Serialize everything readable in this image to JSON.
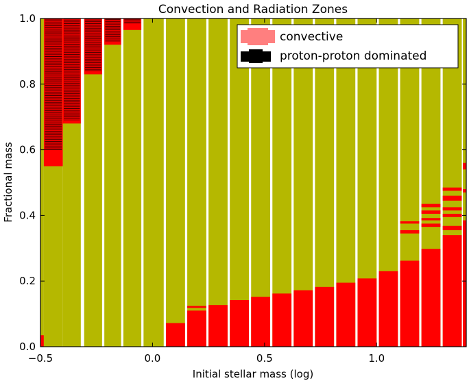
{
  "colors": {
    "radiative": "#b5b800",
    "convective": "#ff0000",
    "convective_legend": "#ff7f7f",
    "proton_proton": "#000000",
    "gap": "#ffffff",
    "axes": "#000000"
  },
  "chart_data": {
    "type": "heatmap",
    "title": "Convection and Radiation Zones",
    "xlabel": "Initial stellar mass (log)",
    "ylabel": "Fractional mass",
    "xlim": [
      -0.5,
      1.4
    ],
    "ylim": [
      0.0,
      1.0
    ],
    "x_ticks": [
      -0.5,
      0.0,
      0.5,
      1.0
    ],
    "x_tick_labels": [
      "−0.5",
      "0.0",
      "0.5",
      "1.0"
    ],
    "y_ticks": [
      0.0,
      0.2,
      0.4,
      0.6,
      0.8,
      1.0
    ],
    "y_tick_labels": [
      "0.0",
      "0.2",
      "0.4",
      "0.6",
      "0.8",
      "1.0"
    ],
    "legend": {
      "position": "upper right",
      "entries": [
        {
          "label": "convective",
          "color": "#ff7f7f"
        },
        {
          "label": "proton-proton dominated",
          "color": "#000000"
        }
      ]
    },
    "columns": [
      {
        "x0": -0.5,
        "x1": -0.485,
        "convective_core": 0.035,
        "convective_envelope_from": null,
        "pp_envelope_from": null,
        "shells": []
      },
      {
        "x0": -0.485,
        "x1": -0.4,
        "convective_core": 0.0,
        "convective_envelope_from": 0.55,
        "pp_envelope_from": 0.6,
        "shells": []
      },
      {
        "x0": -0.4,
        "x1": -0.32,
        "convective_core": 0.0,
        "convective_envelope_from": 0.68,
        "pp_envelope_from": 0.69,
        "shells": []
      },
      {
        "x0": -0.305,
        "x1": -0.225,
        "convective_core": 0.0,
        "convective_envelope_from": 0.83,
        "pp_envelope_from": 0.84,
        "shells": []
      },
      {
        "x0": -0.215,
        "x1": -0.14,
        "convective_core": 0.0,
        "convective_envelope_from": 0.92,
        "pp_envelope_from": 0.93,
        "shells": []
      },
      {
        "x0": -0.13,
        "x1": -0.05,
        "convective_core": 0.0,
        "convective_envelope_from": 0.965,
        "pp_envelope_from": 0.985,
        "shells": []
      },
      {
        "x0": -0.04,
        "x1": 0.05,
        "convective_core": 0.0,
        "convective_envelope_from": null,
        "pp_envelope_from": null,
        "shells": []
      },
      {
        "x0": 0.06,
        "x1": 0.145,
        "convective_core": 0.072,
        "convective_envelope_from": null,
        "pp_envelope_from": null,
        "shells": []
      },
      {
        "x0": 0.155,
        "x1": 0.24,
        "convective_core": 0.11,
        "convective_envelope_from": null,
        "pp_envelope_from": null,
        "shells": [
          [
            0.118,
            0.124
          ]
        ]
      },
      {
        "x0": 0.25,
        "x1": 0.335,
        "convective_core": 0.127,
        "convective_envelope_from": null,
        "pp_envelope_from": null,
        "shells": []
      },
      {
        "x0": 0.345,
        "x1": 0.43,
        "convective_core": 0.142,
        "convective_envelope_from": null,
        "pp_envelope_from": null,
        "shells": []
      },
      {
        "x0": 0.44,
        "x1": 0.525,
        "convective_core": 0.152,
        "convective_envelope_from": null,
        "pp_envelope_from": null,
        "shells": []
      },
      {
        "x0": 0.535,
        "x1": 0.62,
        "convective_core": 0.162,
        "convective_envelope_from": null,
        "pp_envelope_from": null,
        "shells": []
      },
      {
        "x0": 0.63,
        "x1": 0.715,
        "convective_core": 0.172,
        "convective_envelope_from": null,
        "pp_envelope_from": null,
        "shells": []
      },
      {
        "x0": 0.725,
        "x1": 0.81,
        "convective_core": 0.182,
        "convective_envelope_from": null,
        "pp_envelope_from": null,
        "shells": []
      },
      {
        "x0": 0.82,
        "x1": 0.905,
        "convective_core": 0.195,
        "convective_envelope_from": null,
        "pp_envelope_from": null,
        "shells": []
      },
      {
        "x0": 0.915,
        "x1": 1.0,
        "convective_core": 0.208,
        "convective_envelope_from": null,
        "pp_envelope_from": null,
        "shells": []
      },
      {
        "x0": 1.01,
        "x1": 1.095,
        "convective_core": 0.23,
        "convective_envelope_from": null,
        "pp_envelope_from": null,
        "shells": []
      },
      {
        "x0": 1.105,
        "x1": 1.19,
        "convective_core": 0.262,
        "convective_envelope_from": null,
        "pp_envelope_from": null,
        "shells": [
          [
            0.345,
            0.355
          ],
          [
            0.375,
            0.382
          ]
        ]
      },
      {
        "x0": 1.2,
        "x1": 1.285,
        "convective_core": 0.298,
        "convective_envelope_from": null,
        "pp_envelope_from": null,
        "shells": [
          [
            0.365,
            0.375
          ],
          [
            0.385,
            0.392
          ],
          [
            0.405,
            0.415
          ],
          [
            0.425,
            0.435
          ]
        ]
      },
      {
        "x0": 1.295,
        "x1": 1.38,
        "convective_core": 0.34,
        "convective_envelope_from": null,
        "pp_envelope_from": null,
        "shells": [
          [
            0.355,
            0.368
          ],
          [
            0.395,
            0.405
          ],
          [
            0.415,
            0.425
          ],
          [
            0.445,
            0.46
          ],
          [
            0.475,
            0.485
          ]
        ]
      },
      {
        "x0": 1.385,
        "x1": 1.4,
        "convective_core": 0.385,
        "convective_envelope_from": null,
        "pp_envelope_from": null,
        "shells": [
          [
            0.47,
            0.48
          ],
          [
            0.54,
            0.56
          ]
        ]
      }
    ]
  }
}
